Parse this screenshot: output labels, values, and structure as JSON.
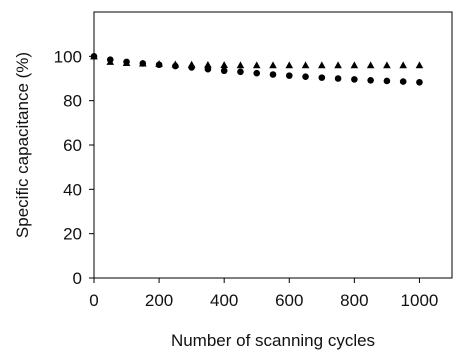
{
  "chart_data": {
    "type": "scatter",
    "title": "",
    "xlabel": "Number of scanning cycles",
    "ylabel": "Specific capacitance (%)",
    "xlim": [
      0,
      1100
    ],
    "ylim": [
      0,
      120
    ],
    "xticks": [
      "0",
      "200",
      "400",
      "600",
      "800",
      "1000"
    ],
    "yticks": [
      "0",
      "20",
      "40",
      "60",
      "80",
      "100"
    ],
    "grid": false,
    "legend": "none",
    "series": [
      {
        "marker": "circle",
        "color": "#000000",
        "x": [
          0,
          50,
          100,
          150,
          200,
          250,
          300,
          350,
          400,
          450,
          500,
          550,
          600,
          650,
          700,
          750,
          800,
          850,
          900,
          950,
          1000
        ],
        "y": [
          100,
          98.5,
          97.5,
          96.8,
          96.2,
          95.6,
          95,
          94.2,
          93.5,
          93,
          92.4,
          91.8,
          91.3,
          90.8,
          90.4,
          90,
          89.6,
          89.2,
          88.9,
          88.6,
          88.3
        ]
      },
      {
        "marker": "triangle",
        "color": "#000000",
        "x": [
          0,
          50,
          100,
          150,
          200,
          250,
          300,
          350,
          400,
          450,
          500,
          550,
          600,
          650,
          700,
          750,
          800,
          850,
          900,
          950,
          1000
        ],
        "y": [
          100,
          97.5,
          97,
          96.8,
          96.6,
          96.4,
          96.3,
          96.2,
          96.1,
          96,
          96,
          96,
          96,
          96,
          96,
          96,
          96,
          96,
          96,
          96,
          96
        ]
      }
    ]
  }
}
